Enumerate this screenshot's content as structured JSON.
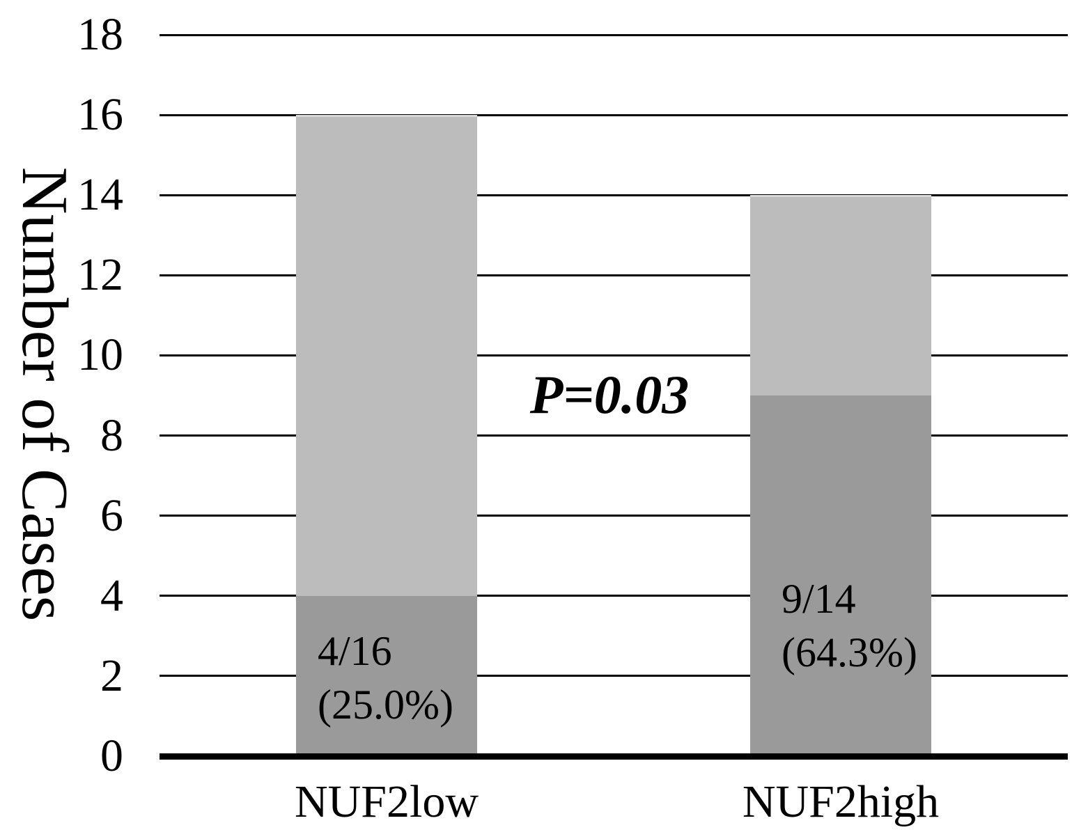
{
  "chart_data": {
    "type": "bar",
    "subtype": "stacked",
    "title": "",
    "ylabel": "Number of Cases",
    "xlabel": "",
    "categories": [
      "NUF2low",
      "NUF2high"
    ],
    "series": [
      {
        "name": "dark",
        "color": "#9a9a9a",
        "values": [
          4,
          9
        ]
      },
      {
        "name": "light",
        "color": "#bcbcbc",
        "values": [
          12,
          5
        ]
      }
    ],
    "bar_totals": [
      16,
      14
    ],
    "bar_labels": [
      [
        "4/16",
        "(25.0%)"
      ],
      [
        "9/14",
        "(64.3%)"
      ]
    ],
    "annotation": "P=0.03",
    "ylim": [
      0,
      18
    ],
    "yticks": [
      0,
      2,
      4,
      6,
      8,
      10,
      12,
      14,
      16,
      18
    ],
    "grid": "horizontal-only",
    "legend": "none",
    "colors": {
      "grid": "#000000",
      "axis": "#000000",
      "text": "#000000",
      "background": "#ffffff"
    }
  }
}
